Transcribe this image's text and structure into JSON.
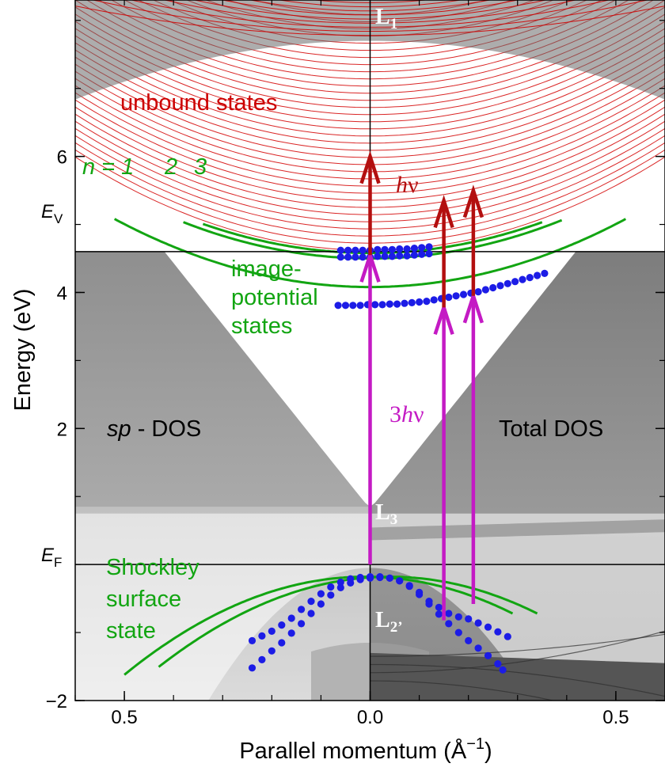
{
  "chart_data": {
    "type": "scatter",
    "xlabel": "Parallel momentum (Å",
    "xlabel_sup": "−1",
    "xlabel_end": ")",
    "ylabel": "Energy (eV)",
    "xlim": [
      -0.6,
      0.6
    ],
    "ylim": [
      -2.0,
      8.3
    ],
    "x_ticks": [
      {
        "v": -0.5,
        "label": "0.5"
      },
      {
        "v": 0.0,
        "label": "0.0"
      },
      {
        "v": 0.5,
        "label": "0.5"
      }
    ],
    "y_ticks": [
      {
        "v": -2,
        "label": "−2"
      },
      {
        "v": 2,
        "label": "2"
      },
      {
        "v": 4,
        "label": "4"
      },
      {
        "v": 6,
        "label": "6"
      }
    ],
    "energy_levels": {
      "EF": {
        "value": 0.0,
        "label": "E",
        "sub": "F"
      },
      "EV": {
        "value": 4.6,
        "label": "E",
        "sub": "V"
      }
    },
    "region_labels": {
      "sp_dos": {
        "italic": "sp",
        "rest": " - DOS"
      },
      "total_dos": "Total  DOS",
      "unbound": "unbound states",
      "image_potential": [
        "image-",
        "potential",
        "states"
      ],
      "shockley": [
        "Shockley",
        "surface",
        "state"
      ],
      "n_labels": {
        "n": "n = 1",
        "two": "2",
        "three": "3"
      },
      "hv": {
        "h": "h",
        "nu": "ν"
      },
      "three_hv": {
        "pre": "3",
        "h": "h",
        "nu": "ν"
      }
    },
    "points": {
      "L1": {
        "label": "L",
        "sub": "1"
      },
      "L3": {
        "label": "L",
        "sub": "3"
      },
      "L2": {
        "label": "L",
        "sub": "2’"
      }
    },
    "image_states_fit": [
      {
        "name": "n = 1",
        "e0": 4.08,
        "k0": 0.0,
        "curv": 3.7,
        "x_range": [
          -0.52,
          0.52
        ]
      },
      {
        "name": "2",
        "e0": 4.5,
        "k0": 0.0,
        "curv": 3.7,
        "x_range": [
          -0.38,
          0.39
        ]
      },
      {
        "name": "3",
        "e0": 4.58,
        "k0": 0.0,
        "curv": 3.7,
        "x_range": [
          -0.34,
          0.35
        ]
      }
    ],
    "surface_state_fit": [
      {
        "e0": -0.18,
        "k0": -0.01,
        "curv": 6.0,
        "x_range": [
          -0.5,
          0.29
        ]
      },
      {
        "e0": -0.18,
        "k0": 0.04,
        "curv": 6.0,
        "x_range": [
          -0.43,
          0.34
        ]
      }
    ],
    "measured_points": {
      "image_n1": {
        "x": [
          -0.065,
          -0.05,
          -0.035,
          -0.02,
          -0.005,
          0.01,
          0.025,
          0.04,
          0.055,
          0.07,
          0.085,
          0.1,
          0.115,
          0.13,
          0.145,
          0.16,
          0.175,
          0.19,
          0.205,
          0.22,
          0.235,
          0.25,
          0.265,
          0.28,
          0.295,
          0.31,
          0.325,
          0.34,
          0.355
        ],
        "y": [
          3.81,
          3.81,
          3.81,
          3.81,
          3.82,
          3.82,
          3.82,
          3.83,
          3.83,
          3.84,
          3.85,
          3.86,
          3.87,
          3.89,
          3.91,
          3.93,
          3.95,
          3.97,
          3.99,
          4.01,
          4.04,
          4.07,
          4.1,
          4.13,
          4.16,
          4.19,
          4.22,
          4.25,
          4.28
        ]
      },
      "image_n2": {
        "x": [
          -0.06,
          -0.045,
          -0.03,
          -0.015,
          0.0,
          0.015,
          0.03,
          0.045,
          0.06,
          0.075,
          0.09,
          0.105,
          0.12
        ],
        "y": [
          4.52,
          4.52,
          4.52,
          4.52,
          4.52,
          4.53,
          4.53,
          4.53,
          4.54,
          4.54,
          4.55,
          4.56,
          4.57
        ]
      },
      "image_n3": {
        "x": [
          -0.06,
          -0.045,
          -0.03,
          -0.015,
          0.0,
          0.015,
          0.03,
          0.045,
          0.06,
          0.075,
          0.09,
          0.105,
          0.12
        ],
        "y": [
          4.62,
          4.62,
          4.62,
          4.62,
          4.62,
          4.63,
          4.63,
          4.63,
          4.64,
          4.64,
          4.65,
          4.66,
          4.67
        ]
      },
      "surface_upper": {
        "x": [
          -0.24,
          -0.22,
          -0.2,
          -0.18,
          -0.16,
          -0.14,
          -0.12,
          -0.1,
          -0.08,
          -0.06,
          -0.04,
          -0.02,
          0.0,
          0.02,
          0.04,
          0.06,
          0.08,
          0.1,
          0.12,
          0.14,
          0.16,
          0.18,
          0.2,
          0.22,
          0.24,
          0.26,
          0.28
        ],
        "y": [
          -1.12,
          -1.05,
          -0.98,
          -0.89,
          -0.79,
          -0.66,
          -0.54,
          -0.43,
          -0.33,
          -0.26,
          -0.21,
          -0.19,
          -0.18,
          -0.19,
          -0.2,
          -0.24,
          -0.31,
          -0.41,
          -0.54,
          -0.63,
          -0.72,
          -0.77,
          -0.8,
          -0.86,
          -0.92,
          -0.99,
          -1.06
        ]
      },
      "surface_lower": {
        "x": [
          -0.24,
          -0.22,
          -0.2,
          -0.18,
          -0.16,
          -0.14,
          -0.12,
          -0.1,
          -0.08,
          -0.06,
          -0.04,
          -0.02,
          0.0,
          0.02,
          0.04,
          0.06,
          0.08,
          0.1,
          0.12,
          0.14,
          0.16,
          0.18,
          0.2,
          0.22,
          0.24,
          0.26,
          0.27
        ],
        "y": [
          -1.52,
          -1.4,
          -1.27,
          -1.15,
          -1.01,
          -0.87,
          -0.72,
          -0.58,
          -0.45,
          -0.34,
          -0.27,
          -0.22,
          -0.2,
          -0.18,
          -0.2,
          -0.24,
          -0.32,
          -0.44,
          -0.58,
          -0.73,
          -0.87,
          -1.0,
          -1.12,
          -1.23,
          -1.34,
          -1.46,
          -1.55
        ]
      }
    },
    "transitions_3hv": [
      {
        "x": 0.0,
        "from": 0.0,
        "to": 4.55
      },
      {
        "x": 0.15,
        "from": -0.82,
        "to": 3.78
      },
      {
        "x": 0.21,
        "from": -0.58,
        "to": 3.95
      }
    ],
    "transitions_hv": [
      {
        "x": 0.0,
        "from": 4.55,
        "to": 6.0
      },
      {
        "x": 0.15,
        "from": 3.78,
        "to": 5.35
      },
      {
        "x": 0.21,
        "from": 3.95,
        "to": 5.5
      }
    ],
    "colors": {
      "image_state": "#12a512",
      "measured": "#1c1ce6",
      "three_hv_arrow": "#c41ac4",
      "hv_arrow": "#b30f0f",
      "unbound_lines": "#d40000",
      "unbound_label": "#cc0000",
      "dos_gray": "#9a9a9a"
    }
  }
}
